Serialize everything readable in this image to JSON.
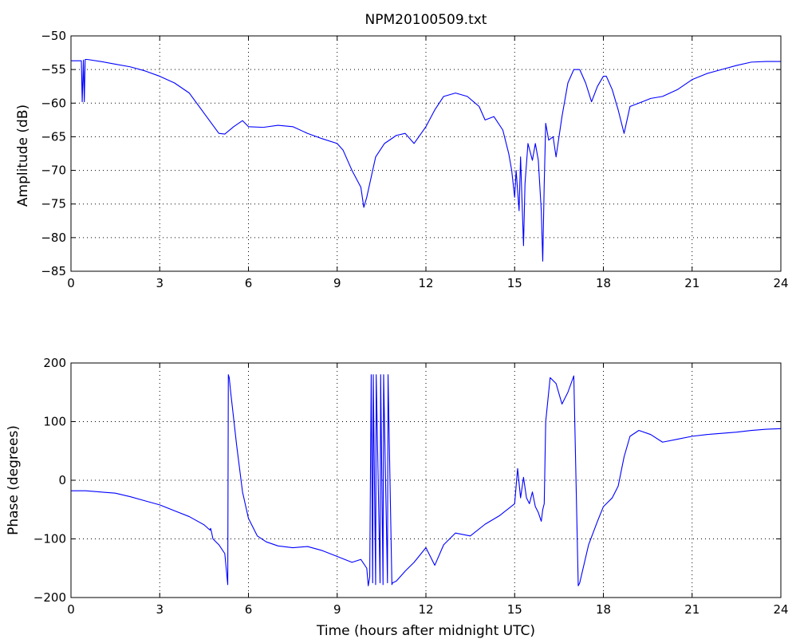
{
  "figure": {
    "title": "NPM20100509.txt"
  },
  "colors": {
    "series": "#0000ff",
    "axes": "#000000",
    "background": "#ffffff"
  },
  "chart_data": [
    {
      "type": "line",
      "ylabel": "Amplitude (dB)",
      "xlabel": "",
      "xlim": [
        0,
        24
      ],
      "ylim": [
        -85,
        -50
      ],
      "xticks": [
        0,
        3,
        6,
        9,
        12,
        15,
        18,
        21,
        24
      ],
      "yticks": [
        -85,
        -80,
        -75,
        -70,
        -65,
        -60,
        -55,
        -50
      ],
      "grid": true,
      "series": [
        {
          "name": "",
          "x": [
            0,
            0.35,
            0.38,
            0.42,
            0.45,
            0.48,
            0.55,
            1,
            1.5,
            2,
            2.5,
            3,
            3.5,
            4,
            4.5,
            5,
            5.2,
            5.5,
            5.8,
            6,
            6.5,
            7,
            7.5,
            8,
            8.5,
            9,
            9.2,
            9.5,
            9.8,
            9.9,
            10,
            10.1,
            10.3,
            10.6,
            11,
            11.3,
            11.6,
            12,
            12.3,
            12.6,
            13,
            13.4,
            13.8,
            14,
            14.3,
            14.6,
            14.8,
            14.9,
            15,
            15.05,
            15.15,
            15.2,
            15.3,
            15.35,
            15.45,
            15.6,
            15.7,
            15.8,
            15.9,
            15.95,
            16,
            16.05,
            16.15,
            16.3,
            16.4,
            16.6,
            16.8,
            17,
            17.2,
            17.4,
            17.6,
            17.8,
            18,
            18.1,
            18.3,
            18.5,
            18.7,
            18.9,
            19.2,
            19.6,
            20,
            20.5,
            21,
            21.5,
            22,
            22.5,
            23,
            23.5,
            24
          ],
          "values": [
            -53.7,
            -53.7,
            -59.8,
            -53.6,
            -59.8,
            -53.5,
            -53.5,
            -53.8,
            -54.2,
            -54.6,
            -55.2,
            -56.0,
            -57.0,
            -58.5,
            -61.5,
            -64.5,
            -64.6,
            -63.5,
            -62.6,
            -63.5,
            -63.6,
            -63.3,
            -63.5,
            -64.5,
            -65.3,
            -66.0,
            -67.0,
            -70.0,
            -72.5,
            -75.5,
            -74.0,
            -72.0,
            -68.0,
            -66.0,
            -64.8,
            -64.5,
            -66.0,
            -63.5,
            -61.0,
            -59.0,
            -58.5,
            -59.0,
            -60.5,
            -62.5,
            -62.0,
            -64.0,
            -67.5,
            -70.0,
            -74.0,
            -70.0,
            -76.0,
            -68.0,
            -81.2,
            -72.0,
            -66.0,
            -68.5,
            -66.0,
            -68.5,
            -76.0,
            -83.5,
            -72.0,
            -63.0,
            -65.5,
            -65.0,
            -68.0,
            -62.0,
            -57.0,
            -55.0,
            -55.0,
            -57.0,
            -59.8,
            -57.5,
            -56.0,
            -56.0,
            -58.0,
            -61.0,
            -64.5,
            -60.5,
            -60.0,
            -59.3,
            -59.0,
            -58.0,
            -56.5,
            -55.6,
            -55.0,
            -54.4,
            -53.9,
            -53.8,
            -53.8
          ]
        }
      ]
    },
    {
      "type": "line",
      "ylabel": "Phase (degrees)",
      "xlabel": "Time (hours after midnight UTC)",
      "xlim": [
        0,
        24
      ],
      "ylim": [
        -200,
        200
      ],
      "xticks": [
        0,
        3,
        6,
        9,
        12,
        15,
        18,
        21,
        24
      ],
      "yticks": [
        -200,
        -100,
        0,
        100,
        200
      ],
      "grid": true,
      "series": [
        {
          "name": "",
          "x": [
            0,
            0.5,
            1,
            1.5,
            2,
            2.5,
            3,
            3.5,
            4,
            4.5,
            4.7,
            4.72,
            4.75,
            4.8,
            5,
            5.2,
            5.3,
            5.32,
            5.35,
            5.4,
            5.6,
            5.8,
            6,
            6.3,
            6.6,
            7,
            7.5,
            8,
            8.5,
            9,
            9.5,
            9.8,
            10.0,
            10.05,
            10.1,
            10.15,
            10.2,
            10.22,
            10.3,
            10.32,
            10.45,
            10.47,
            10.55,
            10.57,
            10.7,
            10.72,
            10.85,
            10.87,
            11,
            11.3,
            11.6,
            12,
            12.3,
            12.6,
            13,
            13.5,
            14,
            14.5,
            15,
            15.1,
            15.2,
            15.3,
            15.4,
            15.5,
            15.6,
            15.7,
            15.8,
            15.9,
            15.95,
            16.0,
            16.05,
            16.2,
            16.4,
            16.6,
            16.8,
            17.0,
            17.15,
            17.17,
            17.2,
            17.5,
            17.8,
            18.0,
            18.3,
            18.5,
            18.7,
            18.9,
            19.2,
            19.6,
            20,
            20.5,
            21,
            21.5,
            22,
            22.5,
            23,
            23.5,
            24
          ],
          "values": [
            -18,
            -18,
            -20,
            -22,
            -28,
            -35,
            -42,
            -52,
            -62,
            -76,
            -85,
            -82,
            -88,
            -100,
            -110,
            -125,
            -178,
            180,
            175,
            150,
            60,
            -20,
            -65,
            -95,
            -105,
            -112,
            -115,
            -113,
            -120,
            -130,
            -140,
            -135,
            -150,
            -180,
            -165,
            180,
            -175,
            180,
            -178,
            180,
            -175,
            180,
            -178,
            180,
            -175,
            180,
            -178,
            -175,
            -172,
            -155,
            -140,
            -115,
            -145,
            -110,
            -90,
            -95,
            -75,
            -60,
            -40,
            20,
            -30,
            5,
            -30,
            -40,
            -20,
            -45,
            -55,
            -70,
            -50,
            -40,
            100,
            175,
            165,
            130,
            150,
            178,
            -180,
            -178,
            -175,
            -110,
            -70,
            -45,
            -30,
            -10,
            40,
            75,
            85,
            78,
            65,
            70,
            75,
            78,
            80,
            82,
            85,
            87,
            88
          ]
        }
      ]
    }
  ]
}
